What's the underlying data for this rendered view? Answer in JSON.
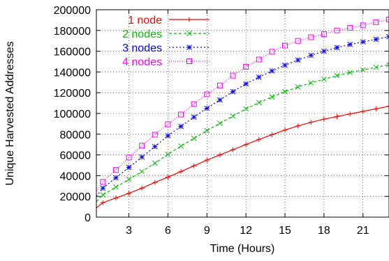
{
  "chart_data": {
    "type": "line",
    "title": "",
    "xlabel": "Time (Hours)",
    "ylabel": "Unique Harvested Addresses",
    "xlim": [
      0.5,
      23
    ],
    "ylim": [
      0,
      200000
    ],
    "xticks": [
      3,
      6,
      9,
      12,
      15,
      18,
      21
    ],
    "yticks": [
      0,
      20000,
      40000,
      60000,
      80000,
      100000,
      120000,
      140000,
      160000,
      180000,
      200000
    ],
    "grid": true,
    "legend": "top-left",
    "x": [
      0.5,
      1,
      2,
      3,
      4,
      5,
      6,
      7,
      8,
      9,
      10,
      11,
      12,
      13,
      14,
      15,
      16,
      17,
      18,
      19,
      20,
      21,
      22,
      23
    ],
    "series": [
      {
        "name": "1 node",
        "color": "#ff0000",
        "marker": "plus",
        "values": [
          9000,
          14000,
          18500,
          23000,
          28000,
          33500,
          38500,
          44000,
          49500,
          55000,
          60000,
          65000,
          70000,
          75000,
          79500,
          84000,
          88000,
          91500,
          94500,
          97000,
          99500,
          102000,
          104500,
          107000
        ]
      },
      {
        "name": "2 nodes",
        "color": "#00c000",
        "marker": "cross",
        "values": [
          15000,
          21500,
          29000,
          36500,
          44000,
          52000,
          60500,
          68500,
          76000,
          83500,
          90500,
          97500,
          104500,
          110500,
          116000,
          121000,
          125500,
          129500,
          133000,
          136500,
          139500,
          142000,
          144500,
          147000
        ]
      },
      {
        "name": "3 nodes",
        "color": "#0000ff",
        "marker": "star",
        "values": [
          20000,
          28000,
          38000,
          48000,
          58000,
          68000,
          78500,
          87500,
          96500,
          105000,
          113000,
          121000,
          128500,
          135000,
          141000,
          146500,
          151500,
          156000,
          160000,
          163500,
          166500,
          169000,
          171500,
          174000
        ]
      },
      {
        "name": "4 nodes",
        "color": "#ff00ff",
        "marker": "square",
        "values": [
          25000,
          34000,
          45500,
          57500,
          69000,
          79500,
          89500,
          99000,
          109000,
          118500,
          127000,
          136500,
          145000,
          152000,
          159500,
          165500,
          170000,
          173500,
          176500,
          180000,
          182500,
          185000,
          188000,
          190500
        ]
      }
    ]
  }
}
